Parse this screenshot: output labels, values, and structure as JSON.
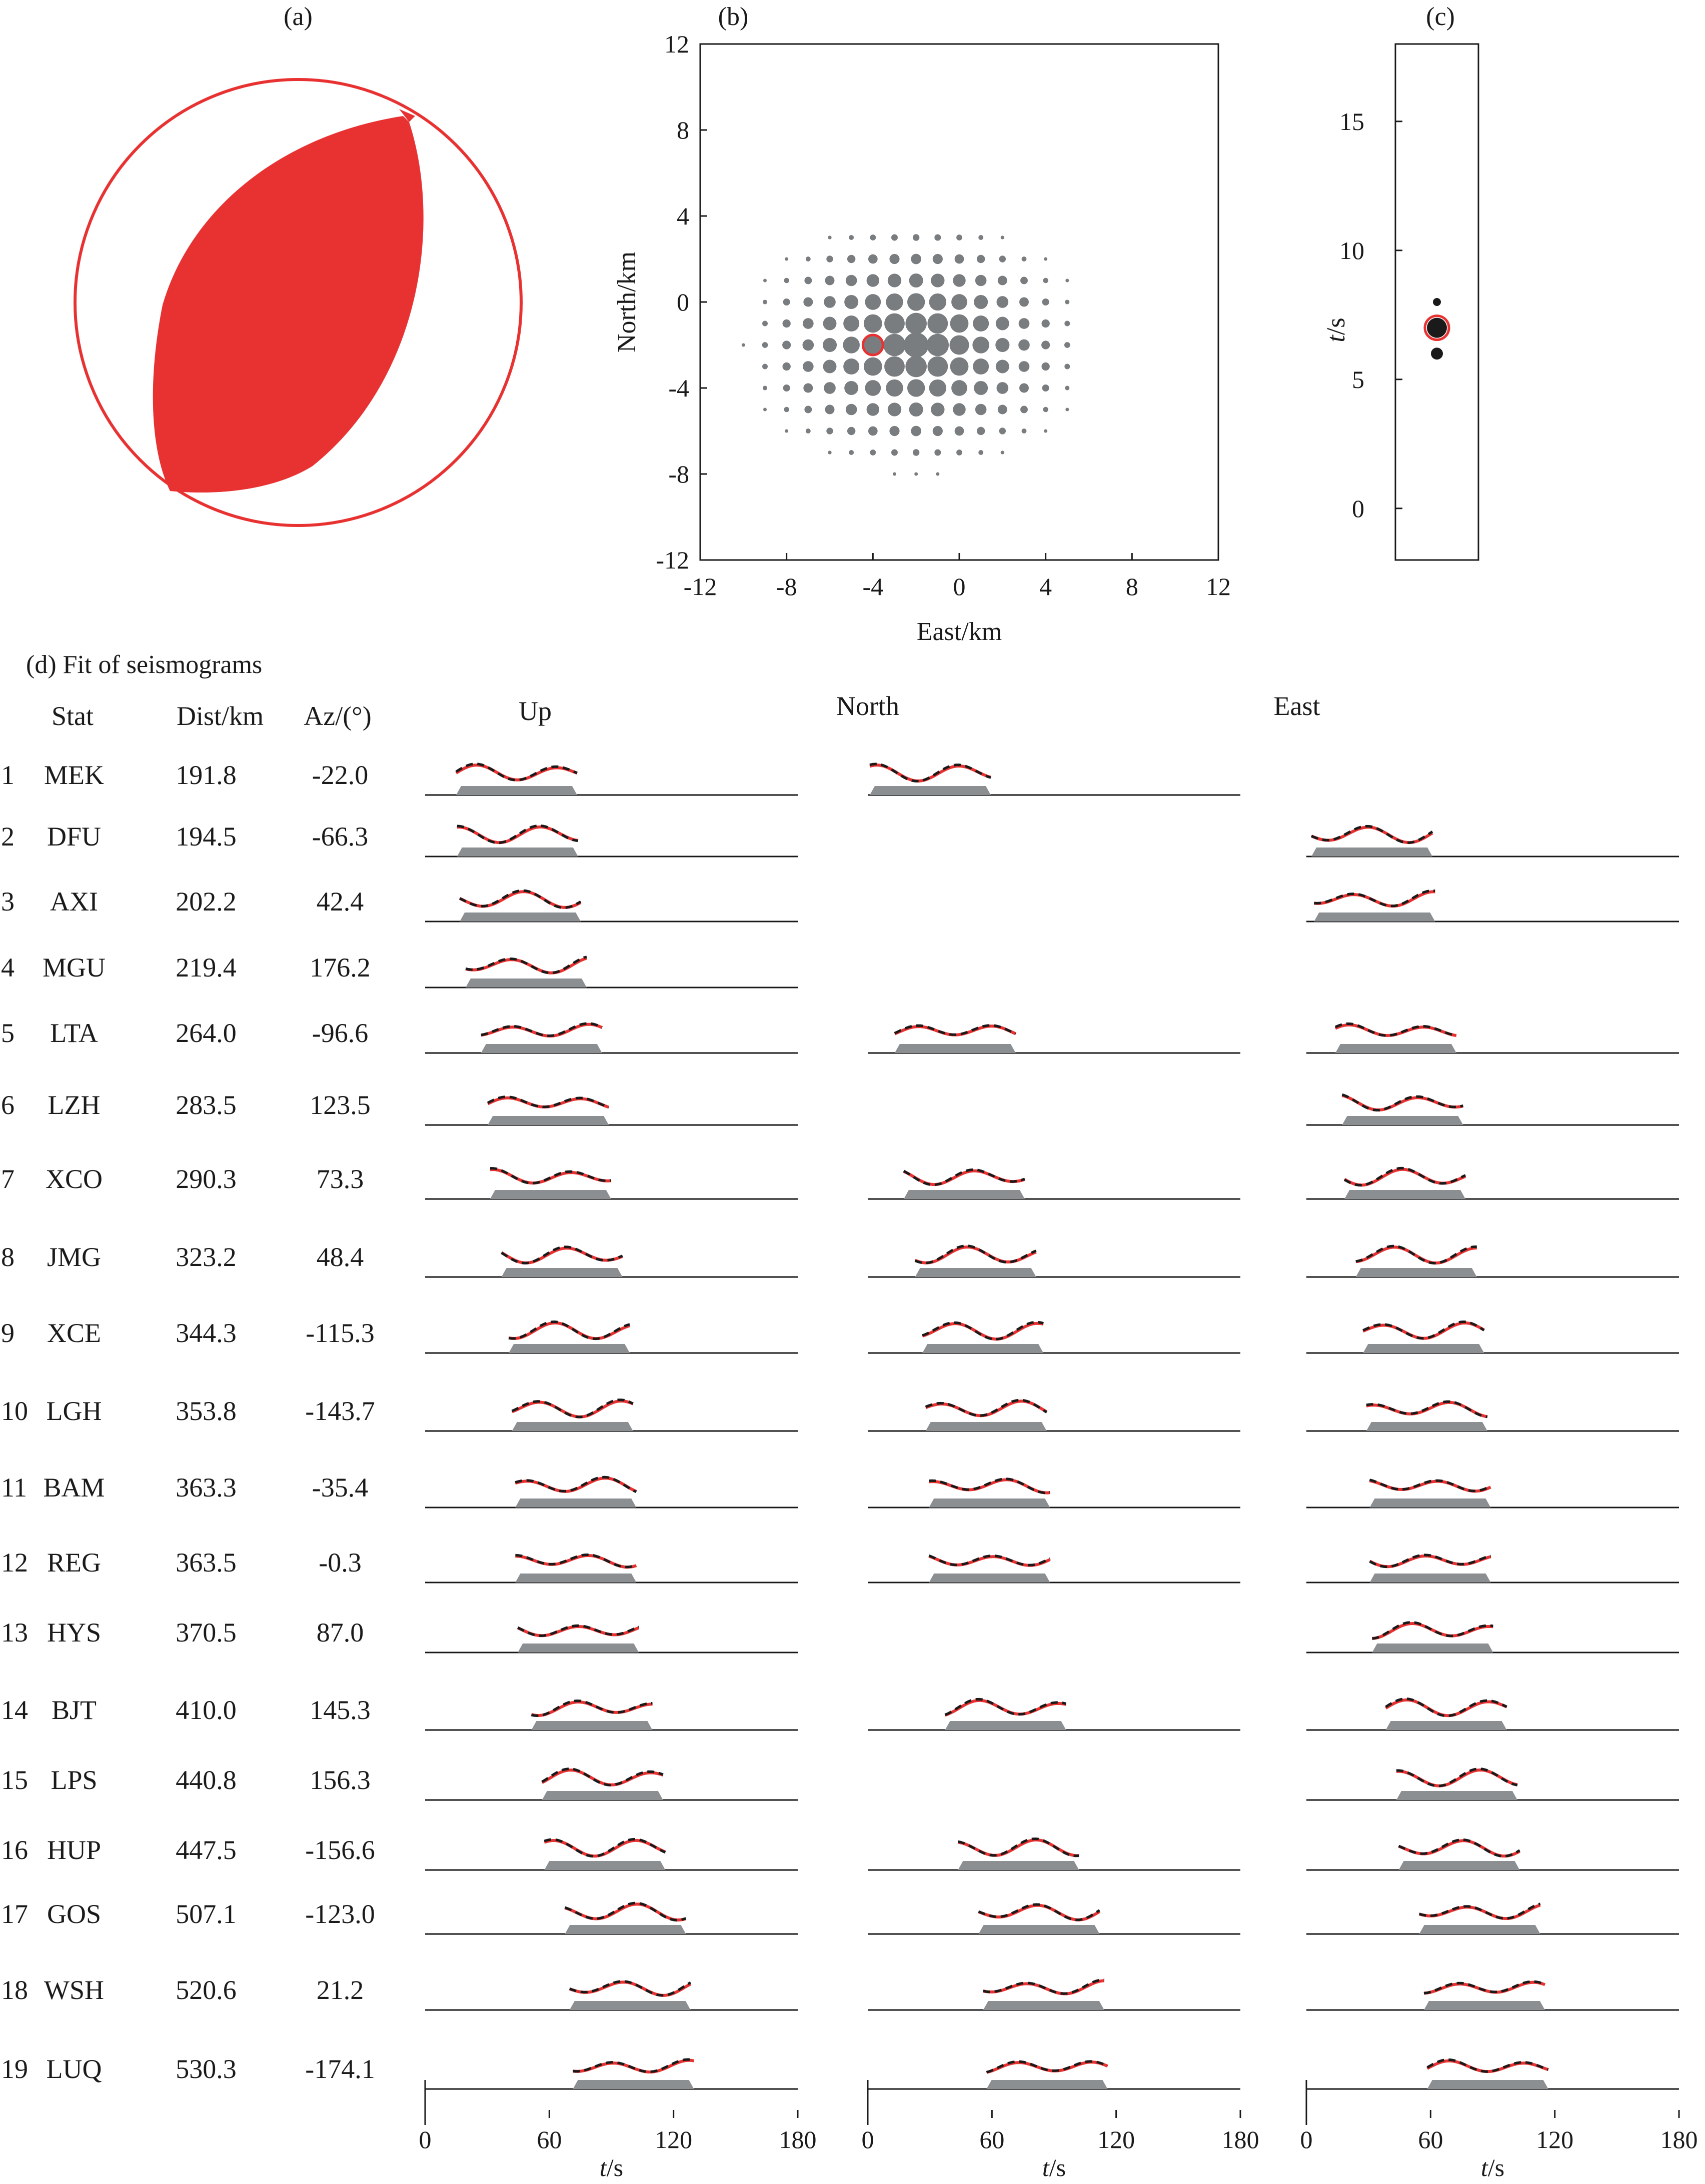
{
  "panels": {
    "a_label": "(a)",
    "b_label": "(b)",
    "c_label": "(c)",
    "d_label": "(d) Fit of seismograms"
  },
  "panel_b": {
    "xlabel": "East/km",
    "ylabel": "North/km",
    "xticks": [
      "-12",
      "-8",
      "-4",
      "0",
      "4",
      "8",
      "12"
    ],
    "yticks": [
      "12",
      "8",
      "4",
      "0",
      "-4",
      "-8",
      "-12"
    ],
    "xlim": [
      -12,
      12
    ],
    "ylim": [
      -12,
      12
    ],
    "best": {
      "x": -4,
      "y": -2
    },
    "grid_x": [
      -10,
      -9,
      -8,
      -7,
      -6,
      -5,
      -4,
      -3,
      -2,
      -1,
      0,
      1,
      2,
      3,
      4,
      5
    ],
    "grid_y": [
      -8,
      -7,
      -6,
      -5,
      -4,
      -3,
      -2,
      -1,
      0,
      1,
      2,
      3
    ],
    "center": {
      "x": -2,
      "y": -2
    }
  },
  "panel_c": {
    "ylabel_italic": "t",
    "ylabel_rest": "/s",
    "yticks": [
      "15",
      "10",
      "5",
      "0"
    ],
    "ylim": [
      -2,
      18
    ],
    "points": [
      {
        "t": 8.0,
        "size": "small"
      },
      {
        "t": 7.0,
        "size": "large",
        "best": true
      },
      {
        "t": 6.0,
        "size": "medium"
      }
    ]
  },
  "table": {
    "headers": {
      "stat": "Stat",
      "dist": "Dist/km",
      "az": "Az/(°)"
    },
    "components": [
      "Up",
      "North",
      "East"
    ],
    "rows": [
      {
        "n": "1",
        "stat": "MEK",
        "dist": "191.8",
        "az": "-22.0",
        "comp": [
          1,
          1,
          0
        ]
      },
      {
        "n": "2",
        "stat": "DFU",
        "dist": "194.5",
        "az": "-66.3",
        "comp": [
          1,
          0,
          1
        ]
      },
      {
        "n": "3",
        "stat": "AXI",
        "dist": "202.2",
        "az": "42.4",
        "comp": [
          1,
          0,
          1
        ]
      },
      {
        "n": "4",
        "stat": "MGU",
        "dist": "219.4",
        "az": "176.2",
        "comp": [
          1,
          0,
          0
        ]
      },
      {
        "n": "5",
        "stat": "LTA",
        "dist": "264.0",
        "az": "-96.6",
        "comp": [
          1,
          1,
          1
        ]
      },
      {
        "n": "6",
        "stat": "LZH",
        "dist": "283.5",
        "az": "123.5",
        "comp": [
          1,
          0,
          1
        ]
      },
      {
        "n": "7",
        "stat": "XCO",
        "dist": "290.3",
        "az": "73.3",
        "comp": [
          1,
          1,
          1
        ]
      },
      {
        "n": "8",
        "stat": "JMG",
        "dist": "323.2",
        "az": "48.4",
        "comp": [
          1,
          1,
          1
        ]
      },
      {
        "n": "9",
        "stat": "XCE",
        "dist": "344.3",
        "az": "-115.3",
        "comp": [
          1,
          1,
          1
        ]
      },
      {
        "n": "10",
        "stat": "LGH",
        "dist": "353.8",
        "az": "-143.7",
        "comp": [
          1,
          1,
          1
        ]
      },
      {
        "n": "11",
        "stat": "BAM",
        "dist": "363.3",
        "az": "-35.4",
        "comp": [
          1,
          1,
          1
        ]
      },
      {
        "n": "12",
        "stat": "REG",
        "dist": "363.5",
        "az": "-0.3",
        "comp": [
          1,
          1,
          1
        ]
      },
      {
        "n": "13",
        "stat": "HYS",
        "dist": "370.5",
        "az": "87.0",
        "comp": [
          1,
          0,
          1
        ]
      },
      {
        "n": "14",
        "stat": "BJT",
        "dist": "410.0",
        "az": "145.3",
        "comp": [
          1,
          1,
          1
        ]
      },
      {
        "n": "15",
        "stat": "LPS",
        "dist": "440.8",
        "az": "156.3",
        "comp": [
          1,
          0,
          1
        ]
      },
      {
        "n": "16",
        "stat": "HUP",
        "dist": "447.5",
        "az": "-156.6",
        "comp": [
          1,
          1,
          1
        ]
      },
      {
        "n": "17",
        "stat": "GOS",
        "dist": "507.1",
        "az": "-123.0",
        "comp": [
          1,
          1,
          1
        ]
      },
      {
        "n": "18",
        "stat": "WSH",
        "dist": "520.6",
        "az": "21.2",
        "comp": [
          1,
          1,
          1
        ]
      },
      {
        "n": "19",
        "stat": "LUQ",
        "dist": "530.3",
        "az": "-174.1",
        "comp": [
          1,
          1,
          1
        ]
      }
    ],
    "time_ticks": [
      "0",
      "60",
      "120",
      "180"
    ],
    "time_label_italic": "t",
    "time_label_rest": "/s",
    "time_range": [
      0,
      180
    ]
  },
  "colors": {
    "beachball": "#e83232",
    "synthetic": "#e83232",
    "observed": "#1a1a1a",
    "grid_dots": "#7a7d80",
    "window": "#8c8f92"
  }
}
